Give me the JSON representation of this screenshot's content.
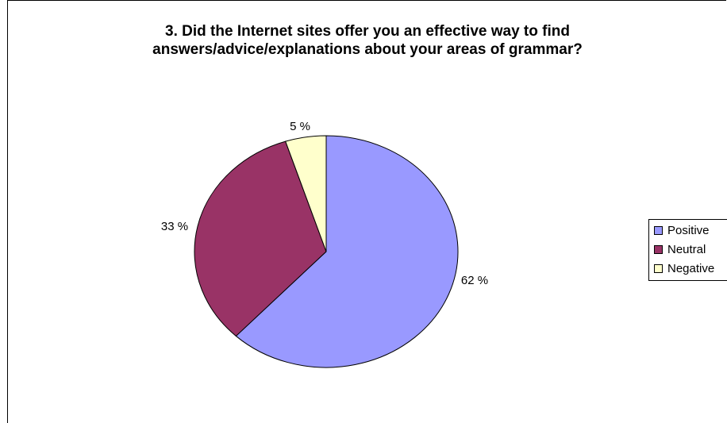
{
  "chart_data": {
    "type": "pie",
    "title_lines": [
      "3. Did the Internet sites offer you an effective way to find",
      "answers/advice/explanations about your areas of grammar?"
    ],
    "slices": [
      {
        "name": "Positive",
        "value": 62,
        "label": "62 %",
        "color": "#9999FF"
      },
      {
        "name": "Neutral",
        "value": 33,
        "label": "33 %",
        "color": "#993366"
      },
      {
        "name": "Negative",
        "value": 5,
        "label": "5 %",
        "color": "#FFFFCC"
      }
    ],
    "legend_position": "right"
  }
}
